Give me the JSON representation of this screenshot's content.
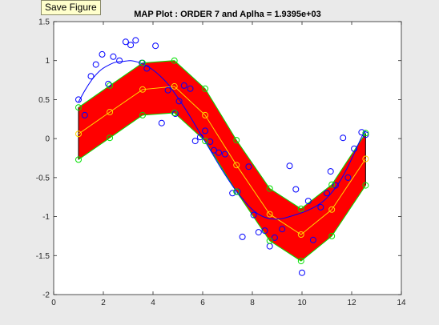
{
  "tooltip": {
    "label": "Save Figure"
  },
  "chart_data": {
    "type": "line",
    "title": "MAP Plot : ORDER 7 and Aplha = 1.9395e+03",
    "xlabel": "",
    "ylabel": "",
    "xlim": [
      0,
      14
    ],
    "ylim": [
      -2,
      1.5
    ],
    "xticks": [
      0,
      2,
      4,
      6,
      8,
      10,
      12,
      14
    ],
    "yticks": [
      -2,
      -1.5,
      -1,
      -0.5,
      0,
      0.5,
      1,
      1.5
    ],
    "grid": false,
    "colors": {
      "band": "#ff0000",
      "band_edge": "#00e000",
      "mean": "#ffd700",
      "fit": "#0000ff",
      "observations": "#0000ff",
      "marker_edge": "#00e000",
      "background": "#ffffff",
      "figure": "#eaeaea"
    },
    "band": {
      "x": [
        1.0,
        2.26,
        3.58,
        4.86,
        6.1,
        7.36,
        8.7,
        9.96,
        11.2,
        12.56
      ],
      "upper": [
        0.4,
        0.68,
        0.97,
        1.0,
        0.64,
        -0.02,
        -0.64,
        -0.9,
        -0.59,
        0.07
      ],
      "mean": [
        0.06,
        0.34,
        0.63,
        0.67,
        0.3,
        -0.34,
        -0.97,
        -1.23,
        -0.91,
        -0.26
      ],
      "lower": [
        -0.27,
        0.01,
        0.3,
        0.33,
        -0.03,
        -0.68,
        -1.31,
        -1.57,
        -1.25,
        -0.6
      ]
    },
    "fit_curve": {
      "x": [
        1.0,
        1.3,
        1.6,
        1.9,
        2.2,
        2.5,
        2.8,
        3.1,
        3.4,
        3.7,
        4.0,
        4.3,
        4.6,
        4.9,
        5.2,
        5.5,
        5.8,
        6.1,
        6.4,
        6.7,
        7.0,
        7.3,
        7.6,
        7.9,
        8.2,
        8.5,
        8.8,
        9.1,
        9.4,
        9.7,
        10.0,
        10.3,
        10.6,
        10.9,
        11.2,
        11.5,
        11.8,
        12.1,
        12.4,
        12.56
      ],
      "y": [
        0.47,
        0.64,
        0.78,
        0.88,
        0.94,
        0.98,
        0.99,
        1.0,
        0.98,
        0.94,
        0.88,
        0.8,
        0.7,
        0.57,
        0.43,
        0.28,
        0.12,
        -0.04,
        -0.2,
        -0.36,
        -0.51,
        -0.65,
        -0.77,
        -0.88,
        -0.96,
        -1.01,
        -1.03,
        -1.03,
        -1.01,
        -0.98,
        -0.95,
        -0.91,
        -0.86,
        -0.79,
        -0.69,
        -0.56,
        -0.39,
        -0.19,
        0.02,
        0.1
      ]
    },
    "observations": {
      "x": [
        1.0,
        1.25,
        1.5,
        1.7,
        1.95,
        2.2,
        2.4,
        2.65,
        2.9,
        3.1,
        3.3,
        3.55,
        3.75,
        4.1,
        4.35,
        4.6,
        4.9,
        5.05,
        5.25,
        5.5,
        5.7,
        5.9,
        6.1,
        6.3,
        6.45,
        6.65,
        6.9,
        7.2,
        7.4,
        7.6,
        7.85,
        8.05,
        8.25,
        8.5,
        8.7,
        8.9,
        9.2,
        9.5,
        9.75,
        10.0,
        10.25,
        10.45,
        10.75,
        11.0,
        11.15,
        11.35,
        11.65,
        11.85,
        12.1,
        12.4,
        12.56
      ],
      "y": [
        0.5,
        0.3,
        0.8,
        0.95,
        1.08,
        0.7,
        1.05,
        1.0,
        1.24,
        1.2,
        1.26,
        0.97,
        0.9,
        1.19,
        0.2,
        0.62,
        0.32,
        0.48,
        0.68,
        0.64,
        -0.03,
        0.02,
        0.1,
        -0.04,
        -0.15,
        -0.18,
        -0.2,
        -0.7,
        -0.68,
        -1.26,
        -0.36,
        -0.98,
        -1.2,
        -1.18,
        -1.38,
        -1.27,
        -1.16,
        -0.35,
        -0.65,
        -1.72,
        -0.8,
        -1.3,
        -0.88,
        -0.7,
        -0.42,
        -0.6,
        0.01,
        -0.5,
        -0.13,
        0.08,
        0.05
      ]
    }
  }
}
